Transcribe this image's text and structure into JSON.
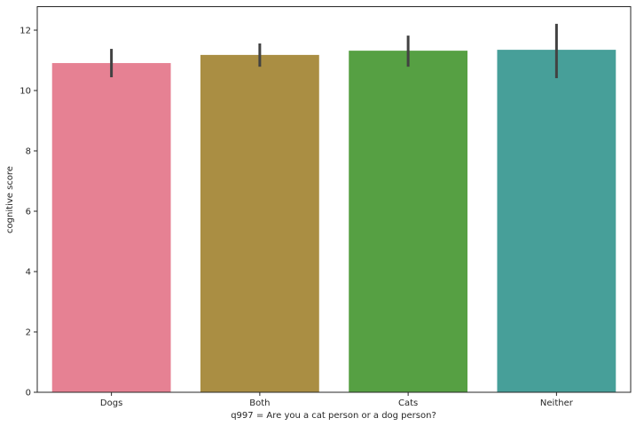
{
  "chart_data": {
    "type": "bar",
    "title": "",
    "xlabel": "q997 = Are you a cat person or a dog person?",
    "ylabel": "cognitive score",
    "categories": [
      "Dogs",
      "Both",
      "Cats",
      "Neither"
    ],
    "values": [
      10.91,
      11.18,
      11.32,
      11.35
    ],
    "error_low": [
      10.44,
      10.79,
      10.79,
      10.41
    ],
    "error_high": [
      11.38,
      11.56,
      11.82,
      12.21
    ],
    "colors": [
      "#e68193",
      "#aa8e43",
      "#56a043",
      "#479f99"
    ],
    "errorbar_color": "#424242",
    "ylim": [
      0,
      12.75
    ],
    "yticks": [
      0,
      2,
      4,
      6,
      8,
      10,
      12
    ],
    "grid": false,
    "legend": null
  }
}
